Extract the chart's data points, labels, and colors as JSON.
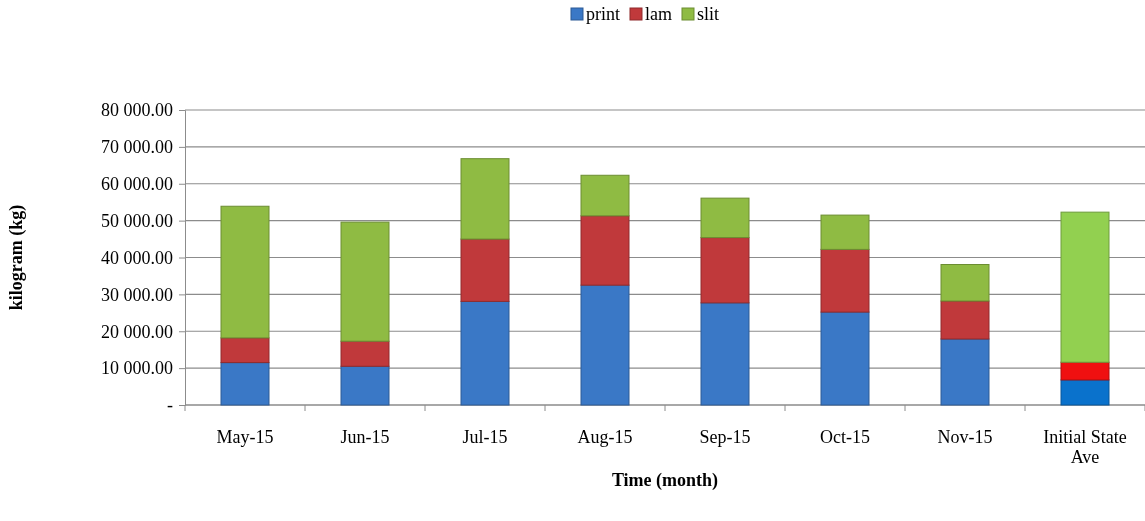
{
  "chart_data": {
    "type": "bar",
    "stacked": true,
    "xlabel": "Time (month)",
    "ylabel": "kilogram (kg)",
    "categories": [
      "May-15",
      "Jun-15",
      "Jul-15",
      "Aug-15",
      "Sep-15",
      "Oct-15",
      "Nov-15",
      "Initial State Ave"
    ],
    "series": [
      {
        "name": "print",
        "color": "#3a78c6",
        "colors": [
          "#3a78c6",
          "#3a78c6",
          "#3a78c6",
          "#3a78c6",
          "#3a78c6",
          "#3a78c6",
          "#3a78c6",
          "#0a72cc"
        ],
        "values": [
          11500,
          10500,
          28100,
          32500,
          27700,
          25200,
          17900,
          6800
        ]
      },
      {
        "name": "lam",
        "color": "#c0393b",
        "colors": [
          "#c0393b",
          "#c0393b",
          "#c0393b",
          "#c0393b",
          "#c0393b",
          "#c0393b",
          "#c0393b",
          "#f01010"
        ],
        "values": [
          6700,
          6800,
          16900,
          18800,
          17700,
          17000,
          10300,
          4800
        ]
      },
      {
        "name": "slit",
        "color": "#8fbb43",
        "colors": [
          "#8fbb43",
          "#8fbb43",
          "#8fbb43",
          "#8fbb43",
          "#8fbb43",
          "#8fbb43",
          "#8fbb43",
          "#92d050"
        ],
        "values": [
          35700,
          32300,
          21800,
          11000,
          10700,
          9300,
          9900,
          40700
        ]
      }
    ],
    "ylim": [
      0,
      80000
    ],
    "yticks": [
      {
        "value": 0,
        "label": "-"
      },
      {
        "value": 10000,
        "label": "10 000.00"
      },
      {
        "value": 20000,
        "label": "20 000.00"
      },
      {
        "value": 30000,
        "label": "30 000.00"
      },
      {
        "value": 40000,
        "label": "40 000.00"
      },
      {
        "value": 50000,
        "label": "50 000.00"
      },
      {
        "value": 60000,
        "label": "60 000.00"
      },
      {
        "value": 70000,
        "label": "70 000.00"
      },
      {
        "value": 80000,
        "label": "80 000.00"
      }
    ],
    "grid": "y",
    "legend": "top"
  }
}
